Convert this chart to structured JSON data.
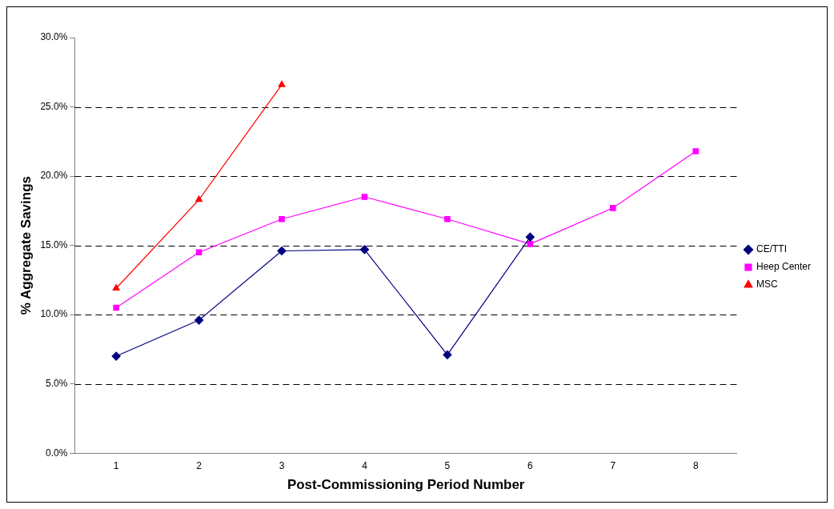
{
  "chart_data": {
    "type": "line",
    "xlabel": "Post-Commissioning Period Number",
    "ylabel": "% Aggregate Savings",
    "categories": [
      "1",
      "2",
      "3",
      "4",
      "5",
      "6",
      "7",
      "8"
    ],
    "series": [
      {
        "name": "CE/TTI",
        "color": "#000080",
        "marker": "diamond",
        "values": [
          7.0,
          9.6,
          14.6,
          14.7,
          7.1,
          15.6,
          null,
          null
        ]
      },
      {
        "name": "Heep Center",
        "color": "#ff00ff",
        "marker": "square",
        "values": [
          10.5,
          14.5,
          16.9,
          18.5,
          16.9,
          15.1,
          17.7,
          21.8
        ]
      },
      {
        "name": "MSC",
        "color": "#ff0000",
        "marker": "triangle",
        "values": [
          11.9,
          18.3,
          26.6,
          null,
          null,
          null,
          null,
          null
        ]
      }
    ],
    "ylim": [
      0,
      30
    ],
    "yticks": [
      {
        "value": 0,
        "label": "0.0%"
      },
      {
        "value": 5,
        "label": "5.0%"
      },
      {
        "value": 10,
        "label": "10.0%"
      },
      {
        "value": 15,
        "label": "15.0%"
      },
      {
        "value": 20,
        "label": "20.0%"
      },
      {
        "value": 25,
        "label": "25.0%"
      },
      {
        "value": 30,
        "label": "30.0%"
      }
    ],
    "grid": "y",
    "legend": "right",
    "line_style": "solid"
  }
}
